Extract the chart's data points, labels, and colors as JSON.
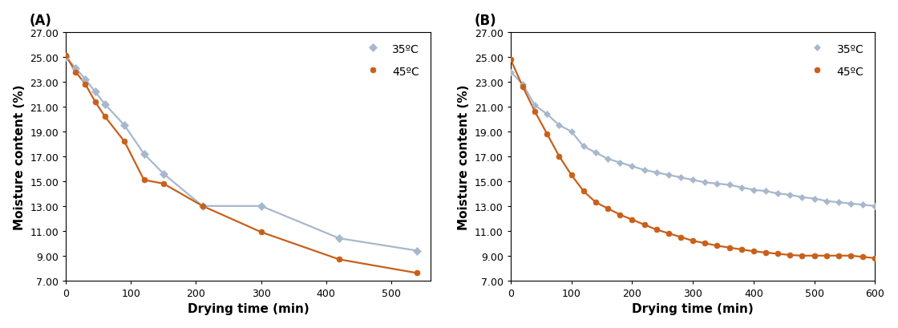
{
  "panel_A": {
    "label": "(A)",
    "series_35": {
      "label": "35ºC",
      "color": "#a8b8cc",
      "marker": "D",
      "markersize": 5,
      "x": [
        0,
        15,
        30,
        45,
        60,
        90,
        120,
        150,
        210,
        300,
        420,
        540
      ],
      "y": [
        25.0,
        24.1,
        23.2,
        22.2,
        21.2,
        19.5,
        17.2,
        15.6,
        13.0,
        13.0,
        10.4,
        9.4
      ]
    },
    "series_45": {
      "label": "45ºC",
      "color": "#c8601a",
      "marker": "o",
      "markersize": 5,
      "x": [
        0,
        15,
        30,
        45,
        60,
        90,
        120,
        150,
        210,
        300,
        420,
        540
      ],
      "y": [
        25.1,
        23.8,
        22.8,
        21.4,
        20.2,
        18.2,
        15.1,
        14.8,
        13.0,
        10.9,
        8.7,
        7.6
      ]
    },
    "xlim": [
      0,
      560
    ],
    "xticks": [
      0,
      100,
      200,
      300,
      400,
      500
    ],
    "ylim": [
      7.0,
      27.0
    ],
    "yticks": [
      7.0,
      9.0,
      11.0,
      13.0,
      15.0,
      17.0,
      19.0,
      21.0,
      23.0,
      25.0,
      27.0
    ]
  },
  "panel_B": {
    "label": "(B)",
    "series_35": {
      "label": "35ºC",
      "color": "#a8b8cc",
      "marker": "D",
      "markersize": 4,
      "x": [
        0,
        20,
        40,
        60,
        80,
        100,
        120,
        140,
        160,
        180,
        200,
        220,
        240,
        260,
        280,
        300,
        320,
        340,
        360,
        380,
        400,
        420,
        440,
        460,
        480,
        500,
        520,
        540,
        560,
        580,
        600
      ],
      "y": [
        23.8,
        22.8,
        21.1,
        20.4,
        19.5,
        19.0,
        17.8,
        17.3,
        16.8,
        16.5,
        16.2,
        15.9,
        15.7,
        15.5,
        15.3,
        15.1,
        14.9,
        14.8,
        14.7,
        14.5,
        14.3,
        14.2,
        14.0,
        13.9,
        13.7,
        13.6,
        13.4,
        13.3,
        13.2,
        13.1,
        13.0
      ]
    },
    "series_45": {
      "label": "45ºC",
      "color": "#c8601a",
      "marker": "o",
      "markersize": 5,
      "x": [
        0,
        20,
        40,
        60,
        80,
        100,
        120,
        140,
        160,
        180,
        200,
        220,
        240,
        260,
        280,
        300,
        320,
        340,
        360,
        380,
        400,
        420,
        440,
        460,
        480,
        500,
        520,
        540,
        560,
        580,
        600
      ],
      "y": [
        24.8,
        22.6,
        20.6,
        18.8,
        17.0,
        15.5,
        14.2,
        13.3,
        12.8,
        12.3,
        11.9,
        11.5,
        11.1,
        10.8,
        10.5,
        10.2,
        10.0,
        9.8,
        9.65,
        9.5,
        9.35,
        9.25,
        9.15,
        9.05,
        9.0,
        9.0,
        9.0,
        9.0,
        9.0,
        8.9,
        8.8
      ]
    },
    "xlim": [
      0,
      600
    ],
    "xticks": [
      0,
      100,
      200,
      300,
      400,
      500,
      600
    ],
    "ylim": [
      7.0,
      27.0
    ],
    "yticks": [
      7.0,
      9.0,
      11.0,
      13.0,
      15.0,
      17.0,
      19.0,
      21.0,
      23.0,
      25.0,
      27.0
    ]
  },
  "xlabel": "Drying time (min)",
  "ylabel": "Moisture content (%)",
  "xlabel_fontsize": 11,
  "ylabel_fontsize": 11,
  "tick_fontsize": 9,
  "legend_fontsize": 10,
  "background_color": "#ffffff"
}
